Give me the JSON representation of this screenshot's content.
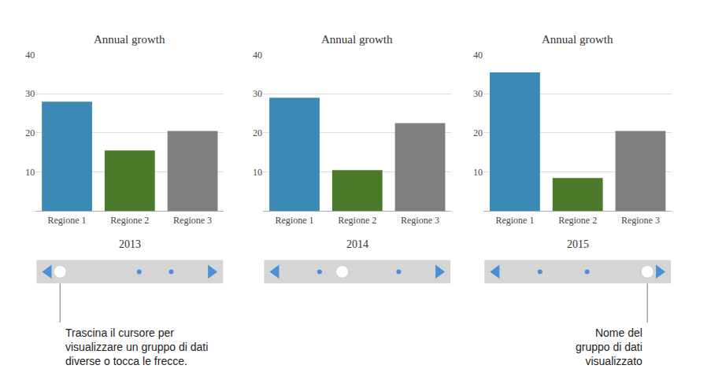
{
  "chart_data": [
    {
      "type": "bar",
      "title": "Annual growth",
      "xlabel": "2013",
      "categories": [
        "Regione 1",
        "Regione 2",
        "Regione 3"
      ],
      "values": [
        28,
        15.5,
        20.5
      ],
      "colors": [
        "#3b89b5",
        "#4a7a2a",
        "#7f7f7f"
      ],
      "ylim": [
        0,
        40
      ],
      "yticks": [
        10,
        20,
        30,
        40
      ],
      "grid": true,
      "annotations": [
        "Trascina il cursore per\nvisualizzare un gruppo di dati\ndiverse o tocca le frecce."
      ]
    },
    {
      "type": "bar",
      "title": "Annual growth",
      "xlabel": "2014",
      "categories": [
        "Regione 1",
        "Regione 2",
        "Regione 3"
      ],
      "values": [
        29,
        10.5,
        22.5
      ],
      "colors": [
        "#3b89b5",
        "#4a7a2a",
        "#7f7f7f"
      ],
      "ylim": [
        0,
        40
      ],
      "yticks": [
        10,
        20,
        30,
        40
      ],
      "grid": true
    },
    {
      "type": "bar",
      "title": "Annual growth",
      "xlabel": "2015",
      "categories": [
        "Regione 1",
        "Regione 2",
        "Regione 3"
      ],
      "values": [
        35.5,
        8.5,
        20.5
      ],
      "colors": [
        "#3b89b5",
        "#4a7a2a",
        "#7f7f7f"
      ],
      "ylim": [
        0,
        40
      ],
      "yticks": [
        10,
        20,
        30,
        40
      ],
      "grid": true,
      "annotations": [
        "Nome del\ngruppo di dati\nvisualizzato"
      ]
    }
  ]
}
